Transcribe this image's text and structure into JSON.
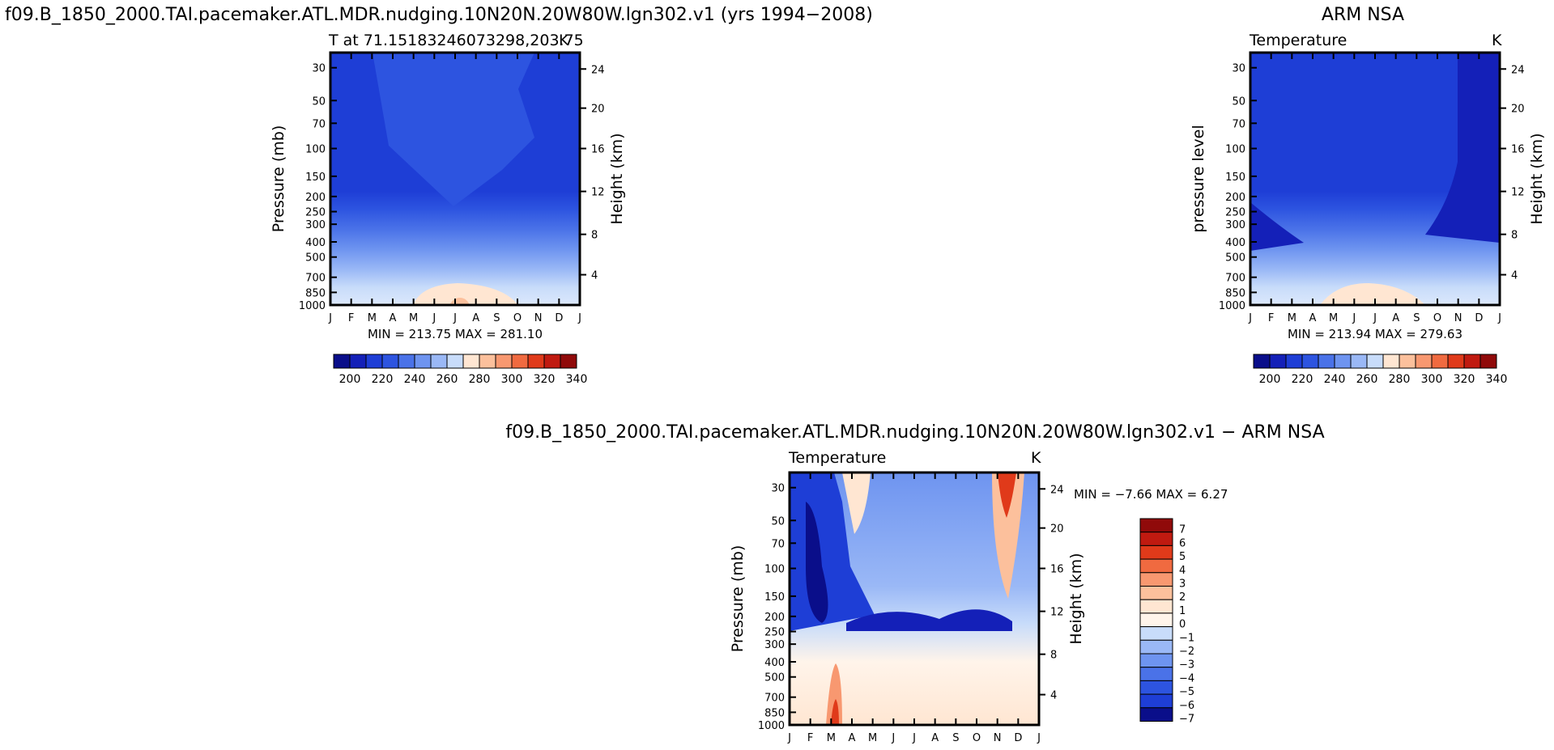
{
  "chart_data": [
    {
      "type": "heatmap",
      "title": "f09.B_1850_2000.TAI.pacemaker.ATL.MDR.nudging.10N20N.20W80W.lgn302.v1 (yrs 1994−2008)",
      "subtitle_left": "T at 71.15183246073298,203.75",
      "subtitle_right": "K",
      "ylabel": "Pressure (mb)",
      "ylabel_right": "Height (km)",
      "xlabel": "",
      "months": [
        "J",
        "F",
        "M",
        "A",
        "M",
        "J",
        "J",
        "A",
        "S",
        "O",
        "N",
        "D",
        "J"
      ],
      "pressure_ticks": [
        "30",
        "50",
        "70",
        "100",
        "150",
        "200",
        "250",
        "300",
        "400",
        "500",
        "700",
        "850",
        "1000"
      ],
      "height_ticks": [
        "24",
        "20",
        "16",
        "12",
        "8",
        "4"
      ],
      "minmax": "MIN = 213.75 MAX = 281.10",
      "min": 213.75,
      "max": 281.1,
      "levels": [
        200,
        210,
        220,
        230,
        240,
        250,
        260,
        270,
        280,
        290,
        300,
        310,
        320,
        330,
        340
      ],
      "legend_labels": [
        "200",
        "220",
        "240",
        "260",
        "280",
        "300",
        "320",
        "340"
      ],
      "colors": [
        "#0a0e8a",
        "#1420b8",
        "#1e3ed6",
        "#2d54e0",
        "#4a72e8",
        "#6e94f0",
        "#9ab8f6",
        "#c8dcfa",
        "#ffe6d2",
        "#fcc09c",
        "#f89870",
        "#f06a40",
        "#e03a1a",
        "#c01a10",
        "#900a0a"
      ]
    },
    {
      "type": "heatmap",
      "title": "ARM NSA",
      "subtitle_left": "Temperature",
      "subtitle_right": "K",
      "ylabel": "pressure level",
      "ylabel_right": "Height (km)",
      "xlabel": "",
      "months": [
        "J",
        "F",
        "M",
        "A",
        "M",
        "J",
        "J",
        "A",
        "S",
        "O",
        "N",
        "D",
        "J"
      ],
      "pressure_ticks": [
        "30",
        "50",
        "70",
        "100",
        "150",
        "200",
        "250",
        "300",
        "400",
        "500",
        "700",
        "850",
        "1000"
      ],
      "height_ticks": [
        "24",
        "20",
        "16",
        "12",
        "8",
        "4"
      ],
      "minmax": "MIN = 213.94 MAX = 279.63",
      "min": 213.94,
      "max": 279.63,
      "legend_labels": [
        "200",
        "220",
        "240",
        "260",
        "280",
        "300",
        "320",
        "340"
      ]
    },
    {
      "type": "heatmap",
      "title": "f09.B_1850_2000.TAI.pacemaker.ATL.MDR.nudging.10N20N.20W80W.lgn302.v1 − ARM NSA",
      "subtitle_left": "Temperature",
      "subtitle_right": "K",
      "ylabel": "Pressure (mb)",
      "ylabel_right": "Height (km)",
      "xlabel": "",
      "months": [
        "J",
        "F",
        "M",
        "A",
        "M",
        "J",
        "J",
        "A",
        "S",
        "O",
        "N",
        "D",
        "J"
      ],
      "pressure_ticks": [
        "30",
        "50",
        "70",
        "100",
        "150",
        "200",
        "250",
        "300",
        "400",
        "500",
        "700",
        "850",
        "1000"
      ],
      "height_ticks": [
        "24",
        "20",
        "16",
        "12",
        "8",
        "4"
      ],
      "minmax": "MIN = −7.66 MAX = 6.27",
      "min": -7.66,
      "max": 6.27,
      "legend_labels": [
        "7",
        "6",
        "5",
        "4",
        "3",
        "2",
        "1",
        "0",
        "−1",
        "−2",
        "−3",
        "−4",
        "−5",
        "−6",
        "−7"
      ],
      "colors": [
        "#900a0a",
        "#c01a10",
        "#e03a1a",
        "#f06a40",
        "#f89870",
        "#fcc09c",
        "#ffe6d2",
        "#fff4ea",
        "#c8dcfa",
        "#9ab8f6",
        "#6e94f0",
        "#4a72e8",
        "#2d54e0",
        "#1e3ed6",
        "#0a0e8a"
      ]
    }
  ]
}
